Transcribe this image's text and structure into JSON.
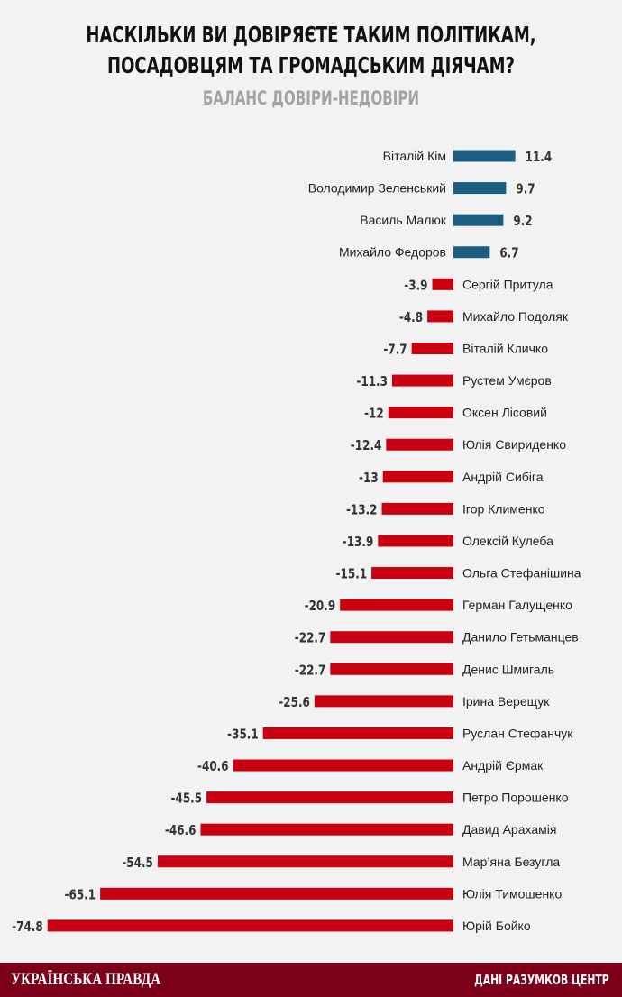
{
  "chart_data": {
    "type": "bar",
    "orientation": "horizontal",
    "title": "НАСКІЛЬКИ ВИ ДОВІРЯЄТЕ ТАКИМ ПОЛІТИКАМ, ПОСАДОВЦЯМ ТА ГРОМАДСЬКИМ ДІЯЧАМ?",
    "title_lines": [
      "НАСКІЛЬКИ ВИ ДОВІРЯЄТЕ ТАКИМ ПОЛІТИКАМ,",
      "ПОСАДОВЦЯМ ТА ГРОМАДСЬКИМ ДІЯЧАМ?"
    ],
    "subtitle": "БАЛАНС ДОВІРИ-НЕДОВІРИ",
    "xlim": [
      -75,
      12
    ],
    "grid": false,
    "colors": {
      "positive": "#1b5e82",
      "negative": "#c8000f"
    },
    "categories": [
      "Віталій Кім",
      "Володимир Зеленський",
      "Василь Малюк",
      "Михайло Федоров",
      "Сергій Притула",
      "Михайло Подоляк",
      "Віталій Кличко",
      "Рустем Умєров",
      "Оксен Лісовий",
      "Юлія Свириденко",
      "Андрій Сибіга",
      "Ігор Клименко",
      "Олексій Кулеба",
      "Ольга Стефанішина",
      "Герман Галущенко",
      "Данило Гетьманцев",
      "Денис Шмигаль",
      "Ірина Верещук",
      "Руслан Стефанчук",
      "Андрій Єрмак",
      "Петро Порошенко",
      "Давид Арахамія",
      "Мар’яна Безугла",
      "Юлія Тимошенко",
      "Юрій Бойко"
    ],
    "values": [
      11.4,
      9.7,
      9.2,
      6.7,
      -3.9,
      -4.8,
      -7.7,
      -11.3,
      -12,
      -12.4,
      -13,
      -13.2,
      -13.9,
      -15.1,
      -20.9,
      -22.7,
      -22.7,
      -25.6,
      -35.1,
      -40.6,
      -45.5,
      -46.6,
      -54.5,
      -65.1,
      -74.8
    ]
  },
  "footer": {
    "logo": "УКРАЇНСЬКА ПРАВДА",
    "source": "ДАНІ РАЗУМКОВ ЦЕНТР"
  }
}
